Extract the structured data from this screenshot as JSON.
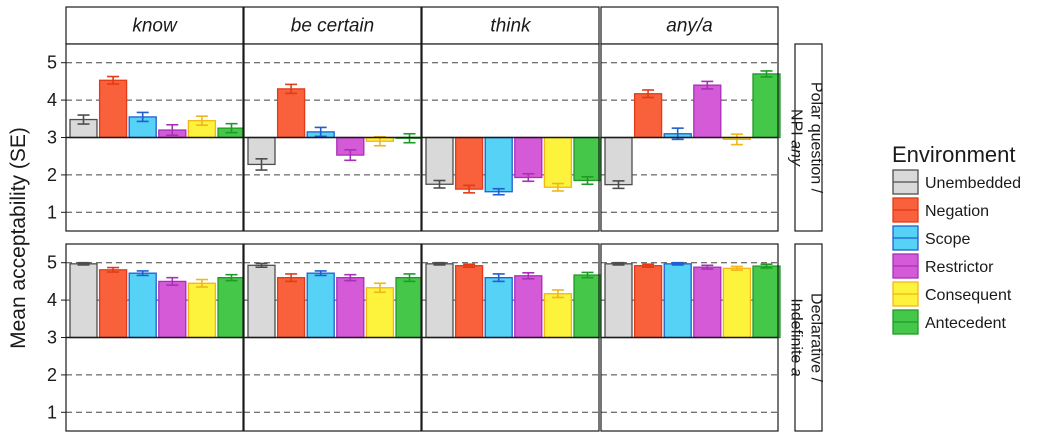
{
  "chart_data": {
    "type": "bar",
    "ylabel": "Mean acceptability (SE)",
    "ylim": [
      0.5,
      5.5
    ],
    "yticks": [
      1,
      2,
      3,
      4,
      5
    ],
    "baseline": 3,
    "grid": "dashed horizontal",
    "columns": [
      "know",
      "be certain",
      "think",
      "any/a"
    ],
    "rows": [
      {
        "id": "polar",
        "label_lines": [
          "Polar question /",
          "NPI "
        ],
        "label_italic": "any"
      },
      {
        "id": "decl",
        "label_lines": [
          "Declarative /",
          "Indefinite "
        ],
        "label_italic": "a"
      }
    ],
    "legend": {
      "title": "Environment",
      "position": "right",
      "entries": [
        {
          "name": "Unembedded",
          "fill": "#d9d9d9",
          "stroke": "#4d4d4d"
        },
        {
          "name": "Negation",
          "fill": "#f8613b",
          "stroke": "#e23b17"
        },
        {
          "name": "Scope",
          "fill": "#55d2f5",
          "stroke": "#1f5fd0"
        },
        {
          "name": "Restrictor",
          "fill": "#d55ad8",
          "stroke": "#a830b8"
        },
        {
          "name": "Consequent",
          "fill": "#fdf33c",
          "stroke": "#f2b619"
        },
        {
          "name": "Antecedent",
          "fill": "#45c84a",
          "stroke": "#1f9b25"
        }
      ]
    },
    "series": [
      {
        "name": "Unembedded",
        "polar": [
          3.48,
          2.28,
          1.75,
          1.74
        ],
        "polar_se": [
          0.12,
          0.15,
          0.1,
          0.1
        ],
        "decl": [
          4.97,
          4.93,
          4.97,
          4.97
        ],
        "decl_se": [
          0.03,
          0.05,
          0.03,
          0.03
        ]
      },
      {
        "name": "Negation",
        "polar": [
          4.53,
          4.3,
          1.62,
          4.17
        ],
        "polar_se": [
          0.1,
          0.12,
          0.1,
          0.1
        ],
        "decl": [
          4.81,
          4.6,
          4.92,
          4.92
        ],
        "decl_se": [
          0.06,
          0.1,
          0.04,
          0.04
        ]
      },
      {
        "name": "Scope",
        "polar": [
          3.55,
          3.15,
          1.55,
          3.1
        ],
        "polar_se": [
          0.12,
          0.12,
          0.08,
          0.15
        ],
        "decl": [
          4.72,
          4.72,
          4.6,
          4.97
        ],
        "decl_se": [
          0.06,
          0.06,
          0.1,
          0.03
        ]
      },
      {
        "name": "Restrictor",
        "polar": [
          3.2,
          2.53,
          1.93,
          4.4
        ],
        "polar_se": [
          0.14,
          0.14,
          0.1,
          0.1
        ],
        "decl": [
          4.5,
          4.6,
          4.65,
          4.88
        ],
        "decl_se": [
          0.1,
          0.08,
          0.08,
          0.05
        ]
      },
      {
        "name": "Consequent",
        "polar": [
          3.45,
          2.9,
          1.67,
          2.95
        ],
        "polar_se": [
          0.12,
          0.12,
          0.1,
          0.14
        ],
        "decl": [
          4.45,
          4.33,
          4.17,
          4.85
        ],
        "decl_se": [
          0.1,
          0.12,
          0.1,
          0.05
        ]
      },
      {
        "name": "Antecedent",
        "polar": [
          3.25,
          2.98,
          1.85,
          4.7
        ],
        "polar_se": [
          0.12,
          0.12,
          0.1,
          0.08
        ],
        "decl": [
          4.6,
          4.6,
          4.67,
          4.91
        ],
        "decl_se": [
          0.08,
          0.1,
          0.07,
          0.05
        ]
      }
    ]
  }
}
